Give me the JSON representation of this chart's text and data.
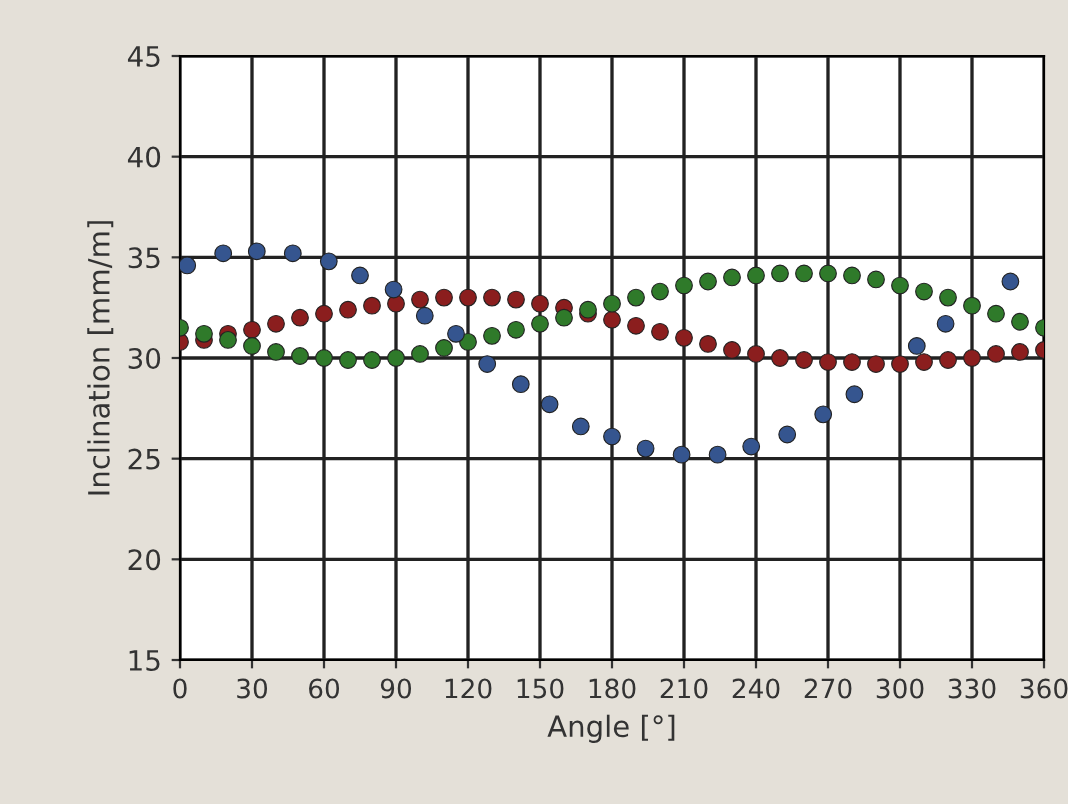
{
  "chart_data": {
    "type": "scatter",
    "xlabel": "Angle [°]",
    "ylabel": "Inclination [mm/m]",
    "xlim": [
      0,
      360
    ],
    "xticks": [
      0,
      30,
      60,
      90,
      120,
      150,
      180,
      210,
      240,
      270,
      300,
      330,
      360
    ],
    "ylim": [
      15,
      45
    ],
    "yticks": [
      15,
      20,
      25,
      30,
      35,
      40,
      45
    ],
    "grid": true,
    "marker": "circle",
    "series": [
      {
        "color": "#8b1e1e",
        "x": [
          0,
          10,
          20,
          30,
          40,
          50,
          60,
          70,
          80,
          90,
          100,
          110,
          120,
          130,
          140,
          150,
          160,
          170,
          180,
          190,
          200,
          210,
          220,
          230,
          240,
          250,
          260,
          270,
          280,
          290,
          300,
          310,
          320,
          330,
          340,
          350,
          360
        ],
        "values": [
          30.8,
          30.9,
          31.2,
          31.4,
          31.7,
          32.0,
          32.2,
          32.4,
          32.6,
          32.7,
          32.9,
          33.0,
          33.0,
          33.0,
          32.9,
          32.7,
          32.5,
          32.2,
          31.9,
          31.6,
          31.3,
          31.0,
          30.7,
          30.4,
          30.2,
          30.0,
          29.9,
          29.8,
          29.8,
          29.7,
          29.7,
          29.8,
          29.9,
          30.0,
          30.2,
          30.3,
          30.4
        ]
      },
      {
        "color": "#2f7a2a",
        "x": [
          0,
          10,
          20,
          30,
          40,
          50,
          60,
          70,
          80,
          90,
          100,
          110,
          120,
          130,
          140,
          150,
          160,
          170,
          180,
          190,
          200,
          210,
          220,
          230,
          240,
          250,
          260,
          270,
          280,
          290,
          300,
          310,
          320,
          330,
          340,
          350,
          360
        ],
        "values": [
          31.5,
          31.2,
          30.9,
          30.6,
          30.3,
          30.1,
          30.0,
          29.9,
          29.9,
          30.0,
          30.2,
          30.5,
          30.8,
          31.1,
          31.4,
          31.7,
          32.0,
          32.4,
          32.7,
          33.0,
          33.3,
          33.6,
          33.8,
          34.0,
          34.1,
          34.2,
          34.2,
          34.2,
          34.1,
          33.9,
          33.6,
          33.3,
          33.0,
          32.6,
          32.2,
          31.8,
          31.5
        ]
      },
      {
        "color": "#35558f",
        "x": [
          3,
          18,
          32,
          47,
          62,
          75,
          89,
          102,
          115,
          128,
          142,
          154,
          167,
          180,
          194,
          209,
          224,
          238,
          253,
          268,
          281,
          307,
          319,
          346
        ],
        "values": [
          34.6,
          35.2,
          35.3,
          35.2,
          34.8,
          34.1,
          33.4,
          32.1,
          31.2,
          29.7,
          28.7,
          27.7,
          26.6,
          26.1,
          25.5,
          25.2,
          25.2,
          25.6,
          26.2,
          27.2,
          28.2,
          30.6,
          31.7,
          33.8
        ]
      }
    ]
  }
}
